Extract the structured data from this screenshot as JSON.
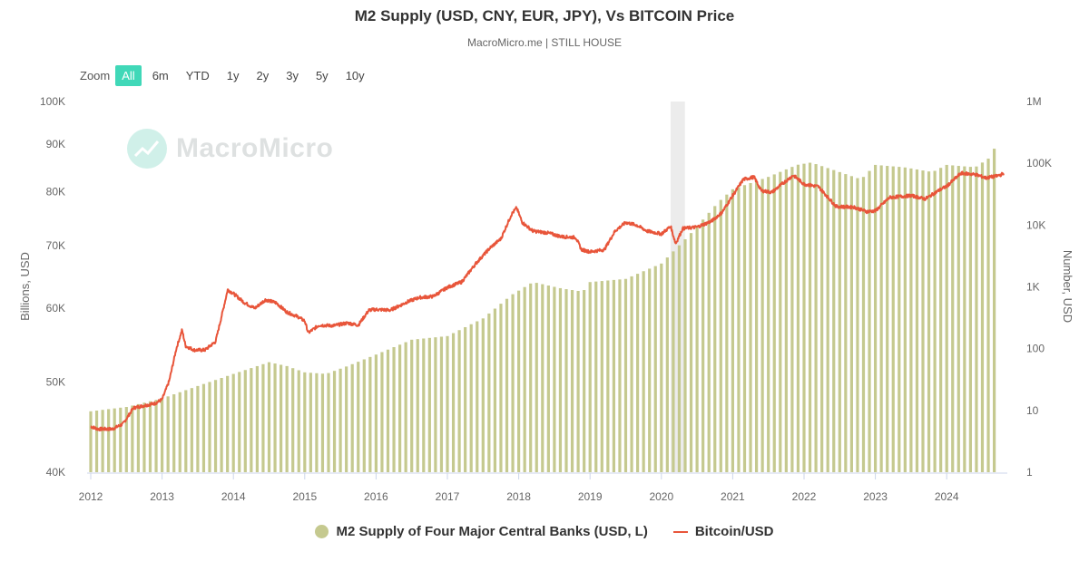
{
  "title": "M2 Supply (USD, CNY, EUR, JPY), Vs BITCOIN Price",
  "subtitle": "MacroMicro.me | STILL HOUSE",
  "zoom": {
    "label": "Zoom",
    "buttons": [
      "All",
      "6m",
      "YTD",
      "1y",
      "2y",
      "3y",
      "5y",
      "10y"
    ],
    "active": "All"
  },
  "watermark": "MacroMicro",
  "colors": {
    "m2": "#c5c98f",
    "btc": "#e8553a",
    "grid": "#e6e6e6",
    "band": "#ececec",
    "accent": "#40d8b8"
  },
  "legend": [
    {
      "label": "M2 Supply of Four Major Central Banks (USD, L)",
      "color": "#c5c98f",
      "shape": "circle"
    },
    {
      "label": "Bitcoin/USD",
      "color": "#e8553a",
      "shape": "line"
    }
  ],
  "chart_data": {
    "type": "bar+line",
    "xlim": [
      2012,
      2024.85
    ],
    "x_ticks": [
      "2012",
      "2013",
      "2014",
      "2015",
      "2016",
      "2017",
      "2018",
      "2019",
      "2020",
      "2021",
      "2022",
      "2023",
      "2024"
    ],
    "left_axis": {
      "label": "Billions, USD",
      "scale": "log",
      "ylim": [
        40000,
        100000
      ],
      "ticks": [
        {
          "v": 40000,
          "t": "40K"
        },
        {
          "v": 50000,
          "t": "50K"
        },
        {
          "v": 60000,
          "t": "60K"
        },
        {
          "v": 70000,
          "t": "70K"
        },
        {
          "v": 80000,
          "t": "80K"
        },
        {
          "v": 90000,
          "t": "90K"
        },
        {
          "v": 100000,
          "t": "100K"
        }
      ]
    },
    "right_axis": {
      "label": "Number, USD",
      "scale": "log",
      "ylim": [
        1,
        1000000
      ],
      "ticks": [
        {
          "v": 1,
          "t": "1"
        },
        {
          "v": 10,
          "t": "10"
        },
        {
          "v": 100,
          "t": "100"
        },
        {
          "v": 1000,
          "t": "1K"
        },
        {
          "v": 10000,
          "t": "10K"
        },
        {
          "v": 100000,
          "t": "100K"
        },
        {
          "v": 1000000,
          "t": "1M"
        }
      ]
    },
    "shaded_band": [
      2020.13,
      2020.33
    ],
    "series": [
      {
        "name": "M2 Supply of Four Major Central Banks (USD, L)",
        "type": "bar",
        "axis": "left",
        "points": [
          [
            2012.0,
            46500
          ],
          [
            2012.5,
            47000
          ],
          [
            2013.0,
            48000
          ],
          [
            2013.5,
            49500
          ],
          [
            2014.0,
            51000
          ],
          [
            2014.5,
            52500
          ],
          [
            2014.75,
            52000
          ],
          [
            2015.0,
            51200
          ],
          [
            2015.3,
            51000
          ],
          [
            2015.6,
            52000
          ],
          [
            2016.0,
            53500
          ],
          [
            2016.5,
            55500
          ],
          [
            2017.0,
            56000
          ],
          [
            2017.3,
            57500
          ],
          [
            2017.5,
            58500
          ],
          [
            2017.9,
            62000
          ],
          [
            2018.2,
            64000
          ],
          [
            2018.6,
            63000
          ],
          [
            2018.9,
            62500
          ],
          [
            2019.0,
            64000
          ],
          [
            2019.5,
            64500
          ],
          [
            2020.0,
            67000
          ],
          [
            2020.4,
            72000
          ],
          [
            2020.8,
            78000
          ],
          [
            2021.0,
            80500
          ],
          [
            2021.5,
            83000
          ],
          [
            2021.9,
            85500
          ],
          [
            2022.1,
            86000
          ],
          [
            2022.4,
            84500
          ],
          [
            2022.8,
            82500
          ],
          [
            2023.0,
            85500
          ],
          [
            2023.4,
            85000
          ],
          [
            2023.8,
            84000
          ],
          [
            2024.0,
            85500
          ],
          [
            2024.4,
            85000
          ],
          [
            2024.6,
            87000
          ],
          [
            2024.7,
            90000
          ]
        ]
      },
      {
        "name": "Bitcoin/USD",
        "type": "line",
        "axis": "right",
        "points": [
          [
            2012.0,
            5.5
          ],
          [
            2012.1,
            5.0
          ],
          [
            2012.3,
            5.0
          ],
          [
            2012.45,
            6.0
          ],
          [
            2012.6,
            11.0
          ],
          [
            2012.75,
            12.0
          ],
          [
            2012.9,
            13.0
          ],
          [
            2013.0,
            15.0
          ],
          [
            2013.1,
            30.0
          ],
          [
            2013.2,
            100.0
          ],
          [
            2013.28,
            200.0
          ],
          [
            2013.33,
            110.0
          ],
          [
            2013.45,
            95.0
          ],
          [
            2013.6,
            95.0
          ],
          [
            2013.75,
            130.0
          ],
          [
            2013.85,
            400.0
          ],
          [
            2013.92,
            900.0
          ],
          [
            2014.0,
            780.0
          ],
          [
            2014.15,
            560.0
          ],
          [
            2014.3,
            450.0
          ],
          [
            2014.45,
            620.0
          ],
          [
            2014.6,
            550.0
          ],
          [
            2014.75,
            390.0
          ],
          [
            2014.9,
            330.0
          ],
          [
            2015.0,
            280.0
          ],
          [
            2015.05,
            180.0
          ],
          [
            2015.2,
            240.0
          ],
          [
            2015.4,
            235.0
          ],
          [
            2015.6,
            260.0
          ],
          [
            2015.75,
            240.0
          ],
          [
            2015.9,
            420.0
          ],
          [
            2016.0,
            430.0
          ],
          [
            2016.2,
            420.0
          ],
          [
            2016.45,
            580.0
          ],
          [
            2016.6,
            670.0
          ],
          [
            2016.8,
            700.0
          ],
          [
            2017.0,
            980.0
          ],
          [
            2017.2,
            1200.0
          ],
          [
            2017.4,
            2400.0
          ],
          [
            2017.6,
            4300.0
          ],
          [
            2017.75,
            6000.0
          ],
          [
            2017.9,
            15000.0
          ],
          [
            2017.97,
            19000.0
          ],
          [
            2018.05,
            11000.0
          ],
          [
            2018.2,
            8000.0
          ],
          [
            2018.4,
            7500.0
          ],
          [
            2018.6,
            6500.0
          ],
          [
            2018.8,
            6300.0
          ],
          [
            2018.88,
            4000.0
          ],
          [
            2019.0,
            3700.0
          ],
          [
            2019.2,
            4000.0
          ],
          [
            2019.35,
            8000.0
          ],
          [
            2019.5,
            11000.0
          ],
          [
            2019.65,
            10000.0
          ],
          [
            2019.8,
            8000.0
          ],
          [
            2020.0,
            7200.0
          ],
          [
            2020.13,
            9500.0
          ],
          [
            2020.2,
            5000.0
          ],
          [
            2020.3,
            8800.0
          ],
          [
            2020.5,
            9300.0
          ],
          [
            2020.7,
            11500.0
          ],
          [
            2020.85,
            16000.0
          ],
          [
            2021.0,
            30000.0
          ],
          [
            2021.15,
            55000.0
          ],
          [
            2021.3,
            60000.0
          ],
          [
            2021.4,
            36000.0
          ],
          [
            2021.55,
            34000.0
          ],
          [
            2021.7,
            47000.0
          ],
          [
            2021.85,
            64000.0
          ],
          [
            2022.0,
            46000.0
          ],
          [
            2022.2,
            42000.0
          ],
          [
            2022.45,
            20000.0
          ],
          [
            2022.7,
            19500.0
          ],
          [
            2022.88,
            16500.0
          ],
          [
            2023.0,
            17000.0
          ],
          [
            2023.2,
            28000.0
          ],
          [
            2023.5,
            30000.0
          ],
          [
            2023.7,
            26500.0
          ],
          [
            2023.9,
            37000.0
          ],
          [
            2024.0,
            42500.0
          ],
          [
            2024.2,
            69000.0
          ],
          [
            2024.4,
            66000.0
          ],
          [
            2024.55,
            58000.0
          ],
          [
            2024.7,
            62000.0
          ],
          [
            2024.8,
            68000.0
          ]
        ]
      }
    ]
  }
}
